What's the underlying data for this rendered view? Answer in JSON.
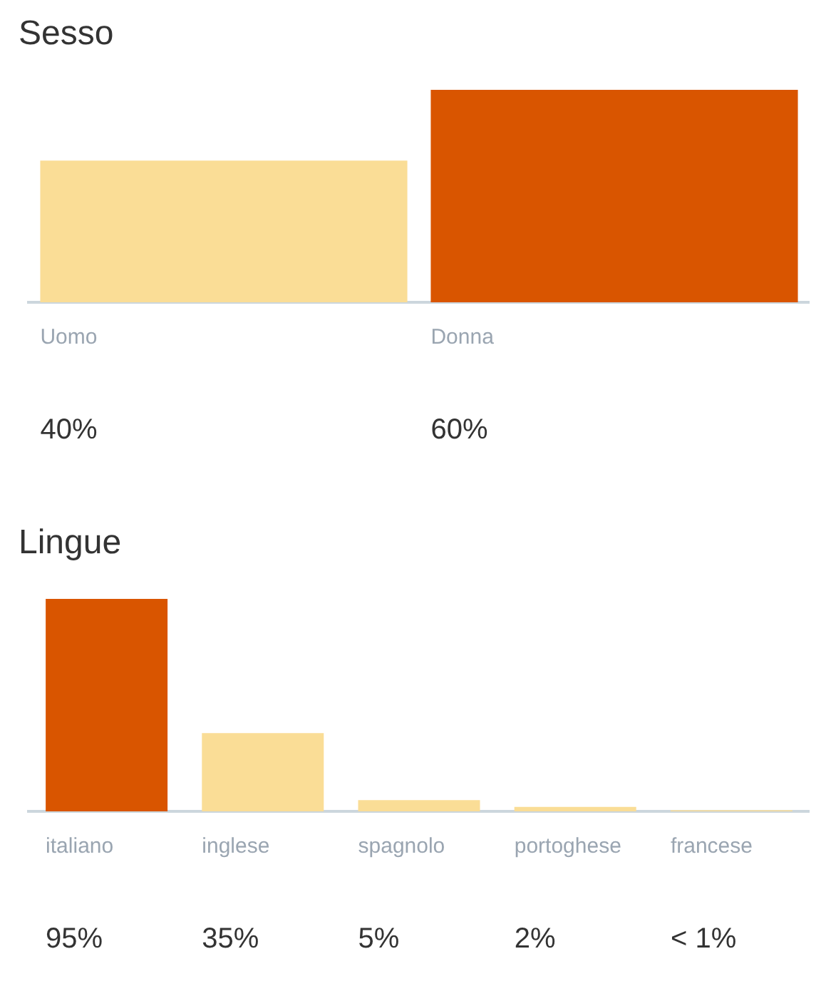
{
  "chart_data": [
    {
      "type": "bar",
      "title": "Sesso",
      "categories": [
        "Uomo",
        "Donna"
      ],
      "values": [
        40,
        60
      ],
      "colors": [
        "#fadd96",
        "#d95500"
      ],
      "value_labels": [
        "40%",
        "60%"
      ]
    },
    {
      "type": "bar",
      "title": "Lingue",
      "categories": [
        "italiano",
        "inglese",
        "spagnolo",
        "portoghese",
        "francese"
      ],
      "values": [
        95,
        35,
        5,
        2,
        0.5
      ],
      "colors": [
        "#d95500",
        "#fadd96",
        "#fadd96",
        "#fadd96",
        "#fadd96"
      ],
      "value_labels": [
        "95%",
        "35%",
        "5%",
        "2%",
        "< 1%"
      ]
    }
  ]
}
